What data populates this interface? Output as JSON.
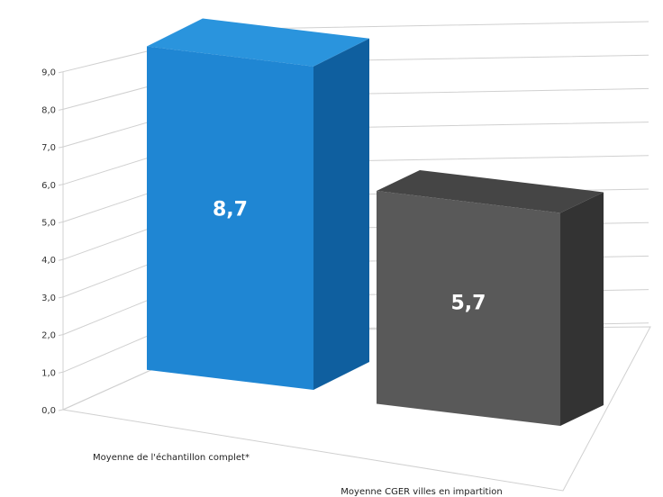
{
  "chart_data": {
    "type": "bar",
    "categories": [
      "Moyenne de l'échantillon complet*",
      "Moyenne CGER villes en impartition"
    ],
    "values": [
      8.7,
      5.7
    ],
    "data_labels": [
      "8,7",
      "5,7"
    ],
    "ticks": [
      "0,0",
      "1,0",
      "2,0",
      "3,0",
      "4,0",
      "5,0",
      "6,0",
      "7,0",
      "8,0",
      "9,0"
    ],
    "ylim": [
      0,
      9
    ],
    "grid": true,
    "legend": "none",
    "colors": {
      "bar1_front": "#1f86d3",
      "bar1_side": "#0f5f9f",
      "bar1_top": "#2a94dd",
      "bar2_front": "#595959",
      "bar2_side": "#333333",
      "bar2_top": "#454545",
      "grid": "#d0d0d0"
    }
  }
}
